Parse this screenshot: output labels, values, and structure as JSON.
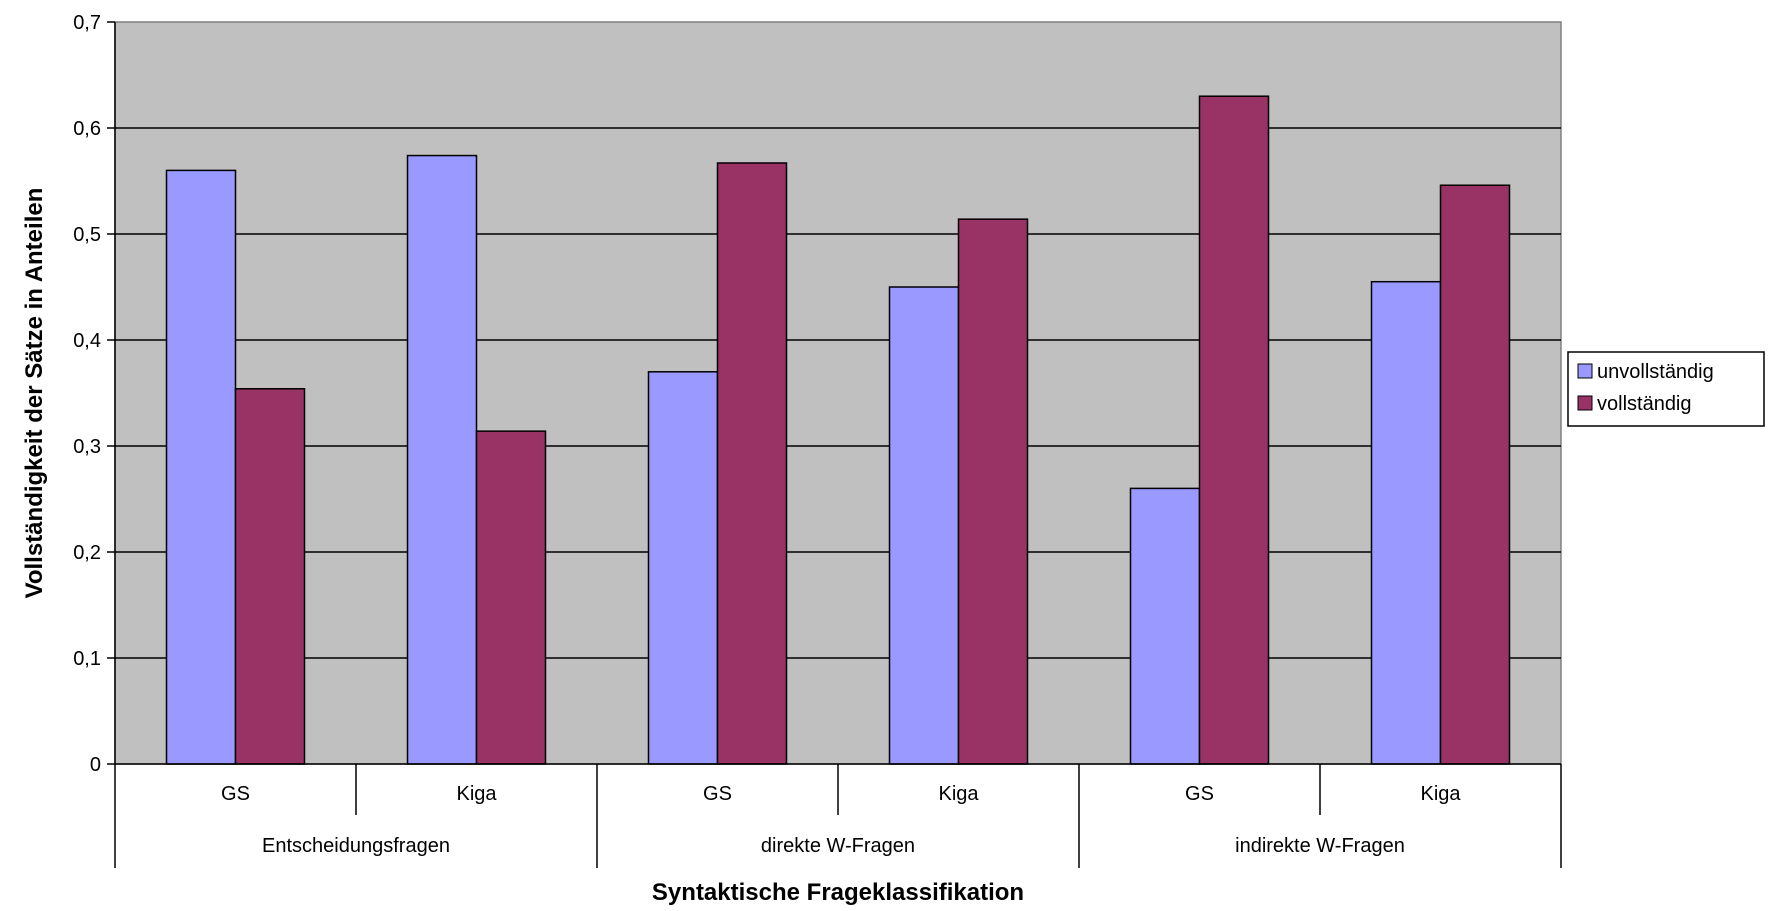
{
  "chart_data": {
    "type": "bar",
    "title": "",
    "xlabel": "Syntaktische Frageklassifikation",
    "ylabel": "Vollständigkeit der Sätze in Anteilen",
    "ylim": [
      0,
      0.7
    ],
    "yticks": [
      {
        "value": 0,
        "label": "0"
      },
      {
        "value": 0.1,
        "label": "0,1"
      },
      {
        "value": 0.2,
        "label": "0,2"
      },
      {
        "value": 0.3,
        "label": "0,3"
      },
      {
        "value": 0.4,
        "label": "0,4"
      },
      {
        "value": 0.5,
        "label": "0,5"
      },
      {
        "value": 0.6,
        "label": "0,6"
      },
      {
        "value": 0.7,
        "label": "0,7"
      }
    ],
    "categories": [
      "GS",
      "Kiga",
      "GS",
      "Kiga",
      "GS",
      "Kiga"
    ],
    "groups": [
      "Entscheidungsfragen",
      "direkte W-Fragen",
      "indirekte W-Fragen"
    ],
    "series": [
      {
        "name": "unvollständig",
        "color": "#9999ff",
        "values": [
          0.56,
          0.574,
          0.37,
          0.45,
          0.26,
          0.455
        ]
      },
      {
        "name": "vollständig",
        "color": "#993366",
        "values": [
          0.354,
          0.314,
          0.567,
          0.514,
          0.63,
          0.546
        ]
      }
    ],
    "grid": true,
    "plot_background": "#c0c0c0",
    "legend_position": "right"
  }
}
